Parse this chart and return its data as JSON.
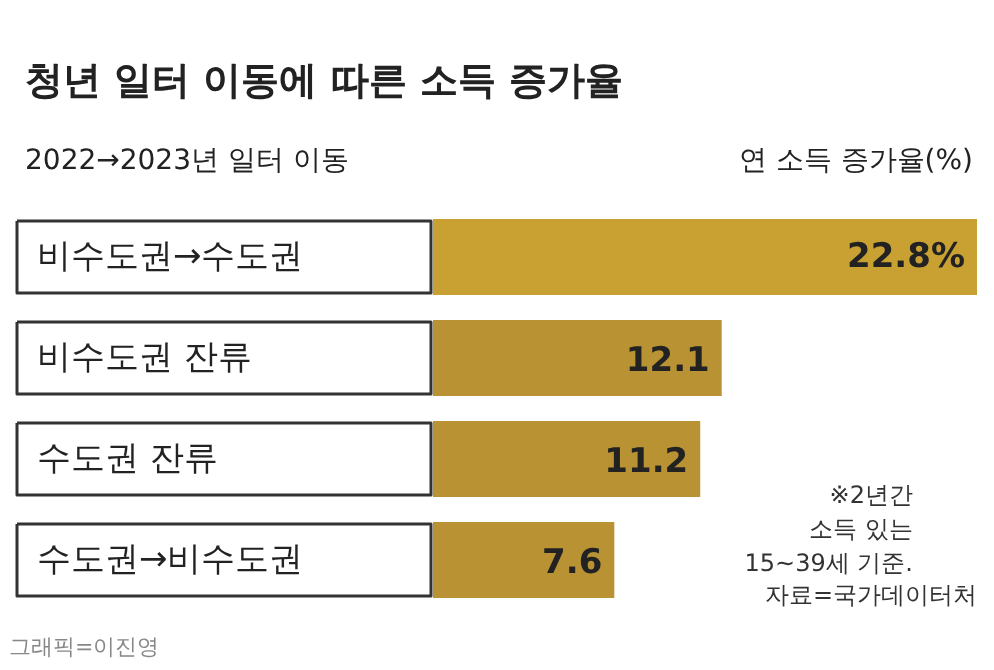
{
  "chart_data": {
    "type": "bar",
    "orientation": "horizontal",
    "title": "청년 일터 이동에 따른 소득 증가율",
    "ylabel": "2022→2023년 일터 이동",
    "xlabel": "연 소득 증가율(%)",
    "categories": [
      "비수도권→수도권",
      "비수도권 잔류",
      "수도권 잔류",
      "수도권→비수도권"
    ],
    "values": [
      22.8,
      12.1,
      11.2,
      7.6
    ],
    "colors": [
      "#c9a032",
      "#b89233",
      "#b89233",
      "#b89233"
    ],
    "value_labels": [
      "22.8%",
      "12.1",
      "11.2",
      "7.6"
    ],
    "annotations": [
      "※2년간\n소득 있는\n15~39세 기준.",
      "자료=국가데이터처",
      "그래픽=이진영"
    ]
  }
}
